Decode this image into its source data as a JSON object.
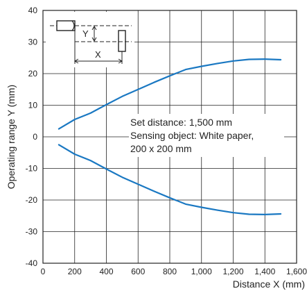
{
  "chart_data": {
    "type": "line",
    "title": "",
    "xlabel": "Distance X (mm)",
    "ylabel": "Operating range Y (mm)",
    "xlim": [
      0,
      1600
    ],
    "ylim": [
      -40,
      40
    ],
    "x_ticks": [
      0,
      200,
      400,
      600,
      800,
      1000,
      1200,
      1400,
      1600
    ],
    "x_tick_labels": [
      "0",
      "200",
      "400",
      "600",
      "800",
      "1,000",
      "1,200",
      "1,400",
      "1,600"
    ],
    "y_ticks": [
      40,
      30,
      20,
      10,
      0,
      -10,
      -20,
      -30,
      -40
    ],
    "y_tick_labels": [
      "40",
      "30",
      "20",
      "10",
      "0",
      "-10",
      "-20",
      "-30",
      "-40"
    ],
    "grid": true,
    "line_color": "#1a78c2",
    "series": [
      {
        "x": [
          100,
          200,
          300,
          400,
          500,
          600,
          700,
          800,
          900,
          1000,
          1100,
          1200,
          1300,
          1400,
          1500
        ],
        "values": [
          2.5,
          5.5,
          7.5,
          10.2,
          12.8,
          15.0,
          17.2,
          19.3,
          21.3,
          22.3,
          23.2,
          24.0,
          24.5,
          24.6,
          24.4
        ]
      },
      {
        "x": [
          100,
          200,
          300,
          400,
          500,
          600,
          700,
          800,
          900,
          1000,
          1100,
          1200,
          1300,
          1400,
          1500
        ],
        "values": [
          -2.5,
          -5.5,
          -7.5,
          -10.2,
          -12.8,
          -15.0,
          -17.2,
          -19.3,
          -21.3,
          -22.3,
          -23.2,
          -24.0,
          -24.5,
          -24.6,
          -24.4
        ]
      }
    ],
    "annotations": [
      "Set distance: 1,500 mm",
      "Sensing object: White paper,",
      "200 x 200 mm"
    ],
    "inset": {
      "y_label": "Y",
      "x_label": "X"
    }
  }
}
